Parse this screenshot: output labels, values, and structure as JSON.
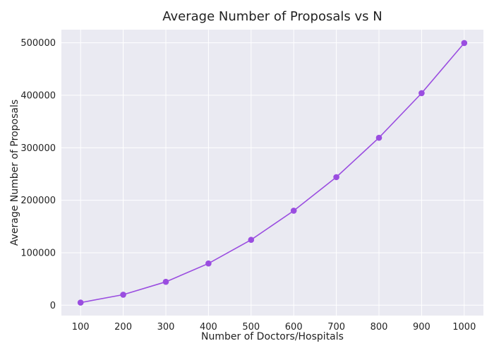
{
  "chart_data": {
    "type": "line",
    "title": "Average Number of Proposals vs N",
    "xlabel": "Number of Doctors/Hospitals",
    "ylabel": "Average Number of Proposals",
    "x": [
      100,
      200,
      300,
      400,
      500,
      600,
      700,
      800,
      900,
      1000
    ],
    "series": [
      {
        "values": [
          5000,
          20000,
          44500,
          79500,
          124500,
          180000,
          244000,
          319000,
          404000,
          499500
        ],
        "color": "#9a4de0"
      }
    ],
    "xticks": [
      100,
      200,
      300,
      400,
      500,
      600,
      700,
      800,
      900,
      1000
    ],
    "yticks": [
      0,
      100000,
      200000,
      300000,
      400000,
      500000
    ],
    "xlim": [
      55,
      1045
    ],
    "ylim": [
      -19800,
      525000
    ],
    "grid": true,
    "legend": "none",
    "colors": {
      "plot_background": "#eaeaf2",
      "grid": "#ffffff",
      "text": "#222222"
    }
  }
}
